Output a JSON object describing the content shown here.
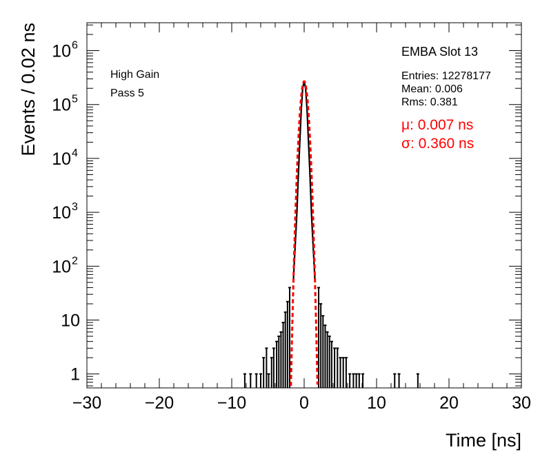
{
  "chart_data": {
    "type": "histogram",
    "xlabel": "Time [ns]",
    "ylabel": "Events / 0.02 ns",
    "xlim": [
      -30,
      30
    ],
    "ylim": [
      0.55,
      3300000
    ],
    "yscale": "log",
    "x_ticks": [
      -30,
      -20,
      -10,
      0,
      10,
      20,
      30
    ],
    "x_tick_labels": [
      "−30",
      "−20",
      "−10",
      "0",
      "10",
      "20",
      "30"
    ],
    "y_ticks": [
      {
        "value": 1,
        "base": "1",
        "exp": ""
      },
      {
        "value": 10,
        "base": "10",
        "exp": ""
      },
      {
        "value": 100,
        "base": "10",
        "exp": "2"
      },
      {
        "value": 1000,
        "base": "10",
        "exp": "3"
      },
      {
        "value": 10000,
        "base": "10",
        "exp": "4"
      },
      {
        "value": 100000,
        "base": "10",
        "exp": "5"
      },
      {
        "value": 1000000,
        "base": "10",
        "exp": "6"
      }
    ],
    "annotations": {
      "gain": "High Gain",
      "pass": "Pass 5",
      "module": "EMBA Slot 13",
      "entries": "Entries: 12278177",
      "mean": "Mean: 0.006",
      "rms": "Rms: 0.381",
      "fit_mu": "μ: 0.007 ns",
      "fit_sigma": "σ: 0.360 ns"
    },
    "histogram": {
      "bin_width": 0.02,
      "peak_x": 0.0,
      "peak_count": 270000,
      "core": [
        {
          "x": -1.5,
          "y": 50
        },
        {
          "x": -1.2,
          "y": 300
        },
        {
          "x": -1.0,
          "y": 1000
        },
        {
          "x": -0.8,
          "y": 5000
        },
        {
          "x": -0.6,
          "y": 20000
        },
        {
          "x": -0.4,
          "y": 80000
        },
        {
          "x": -0.2,
          "y": 200000
        },
        {
          "x": 0.0,
          "y": 270000
        },
        {
          "x": 0.2,
          "y": 200000
        },
        {
          "x": 0.4,
          "y": 80000
        },
        {
          "x": 0.6,
          "y": 20000
        },
        {
          "x": 0.8,
          "y": 5000
        },
        {
          "x": 1.0,
          "y": 1000
        },
        {
          "x": 1.2,
          "y": 300
        },
        {
          "x": 1.5,
          "y": 50
        }
      ],
      "tail_points": [
        {
          "x": -8.2,
          "y": 1
        },
        {
          "x": -7.4,
          "y": 1
        },
        {
          "x": -6.6,
          "y": 1
        },
        {
          "x": -6.0,
          "y": 1
        },
        {
          "x": -5.6,
          "y": 2
        },
        {
          "x": -5.2,
          "y": 3
        },
        {
          "x": -4.9,
          "y": 1
        },
        {
          "x": -4.5,
          "y": 2
        },
        {
          "x": -4.2,
          "y": 3
        },
        {
          "x": -3.8,
          "y": 4
        },
        {
          "x": -3.5,
          "y": 5
        },
        {
          "x": -3.2,
          "y": 6
        },
        {
          "x": -2.9,
          "y": 9
        },
        {
          "x": -2.6,
          "y": 14
        },
        {
          "x": -2.3,
          "y": 22
        },
        {
          "x": -2.0,
          "y": 40
        },
        {
          "x": 2.0,
          "y": 40
        },
        {
          "x": 2.3,
          "y": 20
        },
        {
          "x": 2.6,
          "y": 12
        },
        {
          "x": 2.9,
          "y": 8
        },
        {
          "x": 3.2,
          "y": 6
        },
        {
          "x": 3.5,
          "y": 5
        },
        {
          "x": 3.8,
          "y": 4
        },
        {
          "x": 4.2,
          "y": 3
        },
        {
          "x": 4.6,
          "y": 3
        },
        {
          "x": 5.0,
          "y": 2
        },
        {
          "x": 5.4,
          "y": 2
        },
        {
          "x": 5.8,
          "y": 2
        },
        {
          "x": 6.3,
          "y": 1
        },
        {
          "x": 6.8,
          "y": 1
        },
        {
          "x": 7.2,
          "y": 1
        },
        {
          "x": 7.6,
          "y": 1
        },
        {
          "x": 8.1,
          "y": 1
        },
        {
          "x": 12.5,
          "y": 1
        },
        {
          "x": 13.1,
          "y": 1
        },
        {
          "x": 15.7,
          "y": 1
        }
      ]
    },
    "fit": {
      "type": "gaussian",
      "mu": 0.007,
      "sigma": 0.36,
      "amplitude": 270000,
      "color": "#ff0000",
      "style": "dashed"
    },
    "colors": {
      "histogram": "#000000",
      "fit": "#ff0000",
      "fit_text": "#ff0000"
    }
  }
}
